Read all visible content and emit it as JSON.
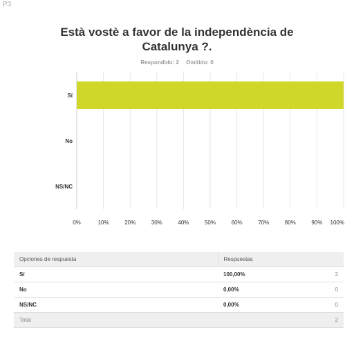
{
  "question_id": "P3",
  "title_line1": "Està vostè a favor de la independència de",
  "title_line2": "Catalunya ?.",
  "stats": {
    "answered": "Respondido: 2",
    "skipped": "Omitido: 0"
  },
  "colors": {
    "bar": "#cfd82a",
    "grid": "#e6e6e6",
    "axis": "#cccccc"
  },
  "chart_data": {
    "type": "bar",
    "orientation": "horizontal",
    "categories": [
      "Sí",
      "No",
      "NS/NC"
    ],
    "values": [
      100,
      0,
      0
    ],
    "xlim": [
      0,
      100
    ],
    "tick_labels": [
      "0%",
      "10%",
      "20%",
      "30%",
      "40%",
      "50%",
      "60%",
      "70%",
      "80%",
      "90%",
      "100%"
    ],
    "grid": true
  },
  "table": {
    "headers": [
      "Opciones de respuesta",
      "Respuestas"
    ],
    "rows": [
      {
        "option": "Sí",
        "percent": "100,00%",
        "count": "2"
      },
      {
        "option": "No",
        "percent": "0,00%",
        "count": "0"
      },
      {
        "option": "NS/NC",
        "percent": "0,00%",
        "count": "0"
      }
    ],
    "total_label": "Total",
    "total_count": "2"
  }
}
